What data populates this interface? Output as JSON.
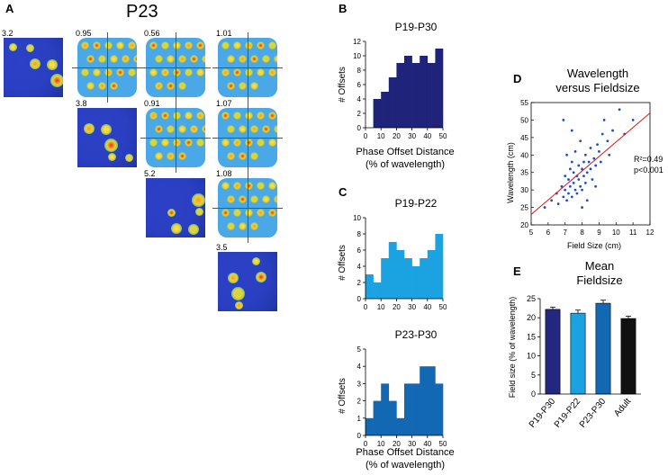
{
  "panelA": {
    "letter": "A",
    "title": "P23",
    "labels": [
      "3.2",
      "0.95",
      "0.56",
      "1.01",
      "3.8",
      "0.91",
      "1.07",
      "5.2",
      "1.08",
      "3.5"
    ]
  },
  "panelB": {
    "letter": "B",
    "chart_data": {
      "type": "bar",
      "title": "P19-P30",
      "xlabel": "Phase Offset Distance",
      "xlabel2": "(% of wavelength)",
      "ylabel": "# Offsets",
      "x": [
        7.5,
        10,
        12.5,
        15,
        17.5,
        20,
        22.5,
        25,
        27.5,
        30,
        32.5,
        35,
        37.5,
        40,
        42.5,
        45,
        47.5,
        50
      ],
      "values": [
        4,
        4,
        5,
        5,
        7,
        7,
        9,
        9,
        10,
        10,
        9,
        9,
        10,
        10,
        9,
        9,
        11,
        11
      ],
      "xlim": [
        0,
        50
      ],
      "ylim": [
        0,
        12
      ],
      "xticks": [
        "0",
        "10",
        "20",
        "30",
        "40",
        "50"
      ],
      "yticks": [
        "0",
        "2",
        "4",
        "6",
        "8",
        "10",
        "12"
      ],
      "color": "#1f237a"
    }
  },
  "panelC": {
    "letter": "C",
    "top": {
      "type": "bar",
      "title": "P19-P22",
      "ylabel": "# Offsets",
      "x": [
        5,
        10,
        15,
        20,
        25,
        30,
        35,
        40,
        45,
        50
      ],
      "values": [
        3,
        2,
        5,
        7,
        6,
        5,
        4,
        5,
        6,
        8
      ],
      "xlim": [
        0,
        50
      ],
      "ylim": [
        0,
        10
      ],
      "xticks": [
        "0",
        "10",
        "20",
        "30",
        "40",
        "50"
      ],
      "yticks": [
        "0",
        "2",
        "4",
        "6",
        "8",
        "10"
      ],
      "color": "#1aa3e0"
    },
    "bottom": {
      "type": "bar",
      "title": "P23-P30",
      "ylabel": "# Offsets",
      "xlabel": "Phase Offset Distance",
      "xlabel2": "(% of wavelength)",
      "x": [
        5,
        10,
        15,
        20,
        25,
        30,
        35,
        40,
        45,
        50
      ],
      "values": [
        1,
        2,
        3,
        2,
        1,
        3,
        3,
        4,
        4,
        3
      ],
      "xlim": [
        0,
        50
      ],
      "ylim": [
        0,
        5
      ],
      "xticks": [
        "0",
        "10",
        "20",
        "30",
        "40",
        "50"
      ],
      "yticks": [
        "0",
        "1",
        "2",
        "3",
        "4",
        "5"
      ],
      "color": "#1368b4"
    }
  },
  "panelD": {
    "letter": "D",
    "chart_data": {
      "type": "scatter",
      "title_line1": "Wavelength",
      "title_line2": "versus Fieldsize",
      "xlabel": "Field Size (cm)",
      "ylabel": "Wavelength (cm)",
      "xlim": [
        5,
        12
      ],
      "ylim": [
        20,
        55
      ],
      "xticks": [
        "5",
        "6",
        "7",
        "8",
        "9",
        "10",
        "11",
        "12"
      ],
      "yticks": [
        "20",
        "25",
        "30",
        "35",
        "40",
        "45",
        "50",
        "55"
      ],
      "annotation1": "R²=0.49",
      "annotation2": "p<0.001",
      "fit": [
        [
          5,
          23
        ],
        [
          12,
          52
        ]
      ],
      "points": [
        [
          5.8,
          25
        ],
        [
          6.2,
          27
        ],
        [
          6.5,
          29
        ],
        [
          6.6,
          26
        ],
        [
          6.8,
          31
        ],
        [
          6.9,
          28
        ],
        [
          7.0,
          30
        ],
        [
          7.0,
          34
        ],
        [
          7.1,
          27
        ],
        [
          7.2,
          33
        ],
        [
          7.2,
          29
        ],
        [
          7.3,
          36
        ],
        [
          7.3,
          31
        ],
        [
          7.4,
          28
        ],
        [
          7.4,
          38
        ],
        [
          7.5,
          32
        ],
        [
          7.5,
          35
        ],
        [
          7.6,
          30
        ],
        [
          7.6,
          41
        ],
        [
          7.7,
          34
        ],
        [
          7.7,
          29
        ],
        [
          7.8,
          37
        ],
        [
          7.8,
          33
        ],
        [
          7.9,
          31
        ],
        [
          7.9,
          44
        ],
        [
          8.0,
          36
        ],
        [
          8.0,
          30
        ],
        [
          8.1,
          38
        ],
        [
          8.1,
          34
        ],
        [
          8.2,
          40
        ],
        [
          8.2,
          32
        ],
        [
          8.3,
          35
        ],
        [
          8.4,
          38
        ],
        [
          8.5,
          36
        ],
        [
          8.5,
          42
        ],
        [
          8.6,
          33
        ],
        [
          8.7,
          39
        ],
        [
          8.8,
          37
        ],
        [
          8.9,
          43
        ],
        [
          9.0,
          41
        ],
        [
          9.1,
          38
        ],
        [
          9.2,
          46
        ],
        [
          9.3,
          50
        ],
        [
          9.5,
          44
        ],
        [
          9.8,
          47
        ],
        [
          10.2,
          53
        ],
        [
          10.5,
          46
        ],
        [
          11.0,
          50
        ],
        [
          6.9,
          50
        ],
        [
          7.4,
          47
        ],
        [
          8.8,
          31
        ],
        [
          9.6,
          40
        ],
        [
          7.1,
          40
        ],
        [
          8.3,
          27
        ],
        [
          8.0,
          25
        ]
      ],
      "color": "#1f4fbf",
      "fit_color": "#d8191b"
    }
  },
  "panelE": {
    "letter": "E",
    "chart_data": {
      "type": "bar",
      "title_line1": "Mean",
      "title_line2": "Fieldsize",
      "ylabel": "Field size (% of wavelength)",
      "categories": [
        "P19-P30",
        "P19-P22",
        "P23-P30",
        "Adult"
      ],
      "values": [
        22.2,
        21.2,
        23.8,
        19.8
      ],
      "errors": [
        0.6,
        0.8,
        0.8,
        0.6
      ],
      "colors": [
        "#23287e",
        "#1aa3e0",
        "#1368b4",
        "#111111"
      ],
      "ylim": [
        0,
        25
      ],
      "yticks": [
        "0",
        "5",
        "10",
        "15",
        "20",
        "25"
      ]
    }
  }
}
